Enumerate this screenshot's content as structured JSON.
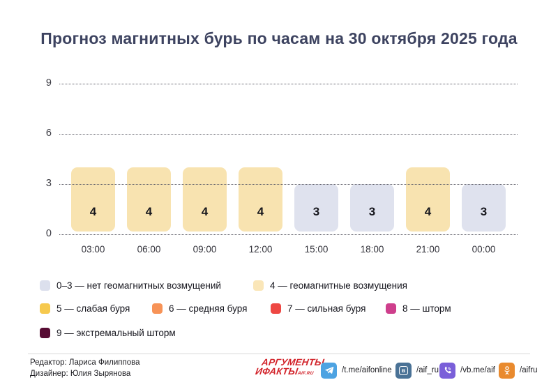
{
  "title": "Прогноз магнитных бурь по часам на 30 октября 2025 года",
  "chart_data": {
    "type": "bar",
    "title": "Прогноз магнитных бурь по часам на 30 октября 2025 года",
    "categories": [
      "03:00",
      "06:00",
      "09:00",
      "12:00",
      "15:00",
      "18:00",
      "21:00",
      "00:00"
    ],
    "values": [
      4,
      4,
      4,
      4,
      3,
      3,
      4,
      3
    ],
    "xlabel": "",
    "ylabel": "",
    "ylim": [
      0,
      9
    ],
    "yticks": [
      0,
      3,
      6,
      9
    ],
    "grid": "horizontal-dotted",
    "legend_position": "bottom",
    "color_disturbance": "#F8E3B0",
    "color_calm": "#DFE2EE",
    "value_label_color": "#17171d"
  },
  "legend": {
    "items": [
      {
        "label": "0–3 — нет геомагнитных возмущений",
        "color": "#DCE0ED"
      },
      {
        "label": "4 — геомагнитные возмущения",
        "color": "#FAE6B8"
      },
      {
        "label": "5 — слабая буря",
        "color": "#F6C94E"
      },
      {
        "label": "6 — средняя буря",
        "color": "#F79357"
      },
      {
        "label": "7 — сильная буря",
        "color": "#EE4743"
      },
      {
        "label": "8 — шторм",
        "color": "#CE3F8C"
      },
      {
        "label": "9 — экстремальный шторм",
        "color": "#570B33"
      }
    ]
  },
  "footer": {
    "editor": "Редактор: Лариса Филиппова",
    "designer": "Дизайнер: Юлия Зырянова",
    "logo": {
      "line1": "АРГУМЕНТЫ",
      "line2": "ИФАКТЫ",
      "suffix": "AIF.RU",
      "color": "#d2232a"
    },
    "socials": [
      {
        "network": "telegram",
        "handle": "/t.me/aifonline",
        "color": "#4DA3E2"
      },
      {
        "network": "vk",
        "handle": "/aif_ru",
        "color": "#4A7296"
      },
      {
        "network": "viber",
        "handle": "/vb.me/aif",
        "color": "#7A5FD9"
      },
      {
        "network": "ok",
        "handle": "/aifru",
        "color": "#E98A2E"
      }
    ]
  }
}
